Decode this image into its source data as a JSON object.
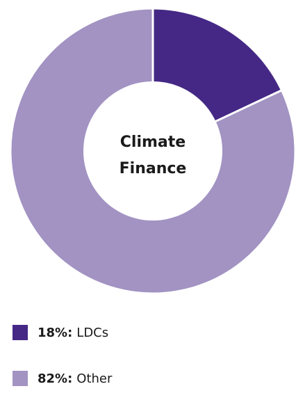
{
  "chart_data": {
    "type": "pie",
    "center_label": [
      "Climate",
      "Finance"
    ],
    "slices": [
      {
        "label": "LDCs",
        "value": 18,
        "value_text": "18%:",
        "color": "#452885"
      },
      {
        "label": "Other",
        "value": 82,
        "value_text": "82%:",
        "color": "#a293c3"
      }
    ],
    "legend_position": "bottom-left"
  }
}
